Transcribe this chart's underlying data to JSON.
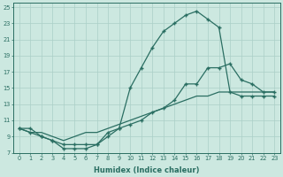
{
  "xlabel": "Humidex (Indice chaleur)",
  "bg_color": "#cce8e0",
  "grid_color": "#aacfc7",
  "line_color": "#2a6e62",
  "line1_x": [
    0,
    1,
    2,
    3,
    4,
    5,
    6,
    7,
    8,
    9,
    10,
    11,
    12,
    13,
    14,
    15,
    16,
    17,
    18,
    19,
    20,
    21,
    22,
    23
  ],
  "line1_y": [
    10.0,
    10.0,
    9.0,
    8.5,
    8.0,
    8.0,
    8.0,
    8.0,
    9.0,
    10.0,
    15.0,
    17.5,
    20.0,
    22.0,
    23.0,
    24.0,
    24.5,
    23.5,
    22.5,
    14.5,
    14.0,
    14.0,
    14.0,
    14.0
  ],
  "line2_x": [
    0,
    1,
    2,
    3,
    4,
    5,
    6,
    7,
    8,
    9,
    10,
    11,
    12,
    13,
    14,
    15,
    16,
    17,
    18,
    19,
    20,
    21,
    22,
    23
  ],
  "line2_y": [
    10.0,
    9.5,
    9.0,
    8.5,
    7.5,
    7.5,
    7.5,
    8.0,
    9.5,
    10.0,
    10.5,
    11.0,
    12.0,
    12.5,
    13.5,
    15.5,
    15.5,
    17.5,
    17.5,
    18.0,
    16.0,
    15.5,
    14.5,
    14.5
  ],
  "line3_x": [
    0,
    1,
    2,
    3,
    4,
    5,
    6,
    7,
    8,
    9,
    10,
    11,
    12,
    13,
    14,
    15,
    16,
    17,
    18,
    19,
    20,
    21,
    22,
    23
  ],
  "line3_y": [
    10.0,
    9.5,
    9.5,
    9.0,
    8.5,
    9.0,
    9.5,
    9.5,
    10.0,
    10.5,
    11.0,
    11.5,
    12.0,
    12.5,
    13.0,
    13.5,
    14.0,
    14.0,
    14.5,
    14.5,
    14.5,
    14.5,
    14.5,
    14.5
  ],
  "xlim": [
    -0.5,
    23.5
  ],
  "ylim": [
    7,
    25.5
  ],
  "yticks": [
    7,
    9,
    11,
    13,
    15,
    17,
    19,
    21,
    23,
    25
  ],
  "xticks": [
    0,
    1,
    2,
    3,
    4,
    5,
    6,
    7,
    8,
    9,
    10,
    11,
    12,
    13,
    14,
    15,
    16,
    17,
    18,
    19,
    20,
    21,
    22,
    23
  ]
}
